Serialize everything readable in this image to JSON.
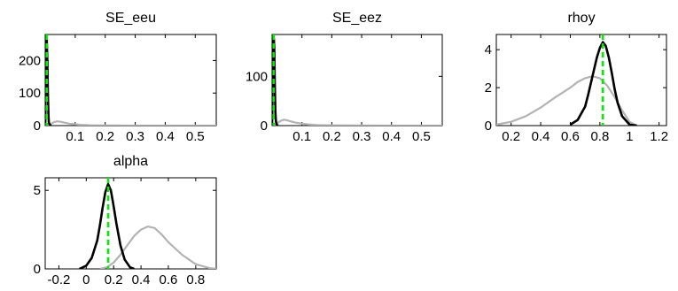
{
  "colors": {
    "prior": "#b3b3b3",
    "posterior": "#000000",
    "mode": "#00ee00",
    "axes": "#000000",
    "background": "#ffffff"
  },
  "chart_data": [
    {
      "type": "line",
      "title": "SE_eeu",
      "xlabel": "",
      "ylabel": "",
      "xlim": [
        0,
        0.57
      ],
      "ylim": [
        0,
        280
      ],
      "x_ticks": [
        0.1,
        0.2,
        0.3,
        0.4,
        0.5
      ],
      "x_tick_labels": [
        "0.1",
        "0.2",
        "0.3",
        "0.4",
        "0.5"
      ],
      "y_ticks": [
        0,
        100,
        200
      ],
      "y_tick_labels": [
        "0",
        "100",
        "200"
      ],
      "mode_line": 0.005,
      "series": [
        {
          "role": "prior",
          "x": [
            0,
            0.005,
            0.01,
            0.015,
            0.02,
            0.03,
            0.04,
            0.05,
            0.06,
            0.08,
            0.1,
            0.12,
            0.15,
            0.2,
            0.3,
            0.4,
            0.5,
            0.57
          ],
          "values": [
            0,
            0,
            1,
            3,
            6,
            11,
            13,
            12,
            10,
            6,
            4,
            2.5,
            1.2,
            0.5,
            0.1,
            0,
            0,
            0
          ]
        },
        {
          "role": "posterior",
          "x": [
            0,
            0.0005,
            0.001,
            0.002,
            0.003,
            0.004,
            0.005,
            0.006,
            0.007,
            0.008,
            0.009,
            0.01,
            0.011,
            0.012,
            0.015,
            0.02
          ],
          "values": [
            0,
            20,
            90,
            220,
            275,
            280,
            270,
            240,
            200,
            150,
            100,
            60,
            30,
            10,
            2,
            0
          ]
        }
      ]
    },
    {
      "type": "line",
      "title": "SE_eez",
      "xlabel": "",
      "ylabel": "",
      "xlim": [
        0,
        0.57
      ],
      "ylim": [
        0,
        185
      ],
      "x_ticks": [
        0.1,
        0.2,
        0.3,
        0.4,
        0.5
      ],
      "x_tick_labels": [
        "0.1",
        "0.2",
        "0.3",
        "0.4",
        "0.5"
      ],
      "y_ticks": [
        0,
        100
      ],
      "y_tick_labels": [
        "0",
        "100"
      ],
      "mode_line": 0.005,
      "series": [
        {
          "role": "prior",
          "x": [
            0,
            0.005,
            0.01,
            0.015,
            0.02,
            0.03,
            0.04,
            0.05,
            0.06,
            0.08,
            0.1,
            0.12,
            0.15,
            0.2,
            0.3,
            0.4,
            0.5,
            0.57
          ],
          "values": [
            0,
            0,
            1,
            3,
            6,
            10,
            12,
            11,
            9,
            6,
            4,
            2.5,
            1.2,
            0.5,
            0.1,
            0,
            0,
            0
          ]
        },
        {
          "role": "posterior",
          "x": [
            0,
            0.001,
            0.002,
            0.003,
            0.004,
            0.005,
            0.006,
            0.007,
            0.008,
            0.009,
            0.01,
            0.011,
            0.012,
            0.013,
            0.015,
            0.02
          ],
          "values": [
            0,
            40,
            120,
            175,
            182,
            180,
            175,
            160,
            130,
            90,
            55,
            30,
            18,
            8,
            2,
            0
          ]
        }
      ]
    },
    {
      "type": "line",
      "title": "rhoy",
      "xlabel": "",
      "ylabel": "",
      "xlim": [
        0.1,
        1.25
      ],
      "ylim": [
        0,
        4.8
      ],
      "x_ticks": [
        0.2,
        0.4,
        0.6,
        0.8,
        1,
        1.2
      ],
      "x_tick_labels": [
        "0.2",
        "0.4",
        "0.6",
        "0.8",
        "1",
        "1.2"
      ],
      "y_ticks": [
        0,
        2,
        4
      ],
      "y_tick_labels": [
        "0",
        "2",
        "4"
      ],
      "mode_line": 0.82,
      "series": [
        {
          "role": "prior",
          "x": [
            0.1,
            0.2,
            0.3,
            0.4,
            0.5,
            0.6,
            0.65,
            0.7,
            0.75,
            0.8,
            0.85,
            0.9,
            0.95,
            1.0,
            1.05
          ],
          "values": [
            0.05,
            0.2,
            0.5,
            0.95,
            1.5,
            2.0,
            2.3,
            2.5,
            2.6,
            2.5,
            2.1,
            1.5,
            0.8,
            0.2,
            0
          ]
        },
        {
          "role": "posterior",
          "x": [
            0.6,
            0.65,
            0.7,
            0.72,
            0.75,
            0.78,
            0.8,
            0.82,
            0.84,
            0.86,
            0.88,
            0.9,
            0.92,
            0.95,
            1.0,
            1.05
          ],
          "values": [
            0.05,
            0.3,
            1.0,
            1.6,
            2.6,
            3.6,
            4.1,
            4.4,
            4.2,
            3.6,
            2.8,
            1.9,
            1.2,
            0.5,
            0.05,
            0
          ]
        }
      ]
    },
    {
      "type": "line",
      "title": "alpha",
      "xlabel": "",
      "ylabel": "",
      "xlim": [
        -0.3,
        0.95
      ],
      "ylim": [
        0,
        5.8
      ],
      "x_ticks": [
        -0.2,
        0,
        0.2,
        0.4,
        0.6,
        0.8
      ],
      "x_tick_labels": [
        "-0.2",
        "0",
        "0.2",
        "0.4",
        "0.6",
        "0.8"
      ],
      "y_ticks": [
        0,
        5
      ],
      "y_tick_labels": [
        "0",
        "5"
      ],
      "mode_line": 0.16,
      "series": [
        {
          "role": "prior",
          "x": [
            0.1,
            0.15,
            0.2,
            0.25,
            0.3,
            0.35,
            0.4,
            0.45,
            0.5,
            0.55,
            0.6,
            0.7,
            0.8,
            0.9,
            0.95
          ],
          "values": [
            0,
            0.1,
            0.4,
            0.9,
            1.5,
            2.1,
            2.5,
            2.7,
            2.6,
            2.2,
            1.7,
            0.9,
            0.3,
            0.05,
            0
          ]
        },
        {
          "role": "posterior",
          "x": [
            -0.05,
            0,
            0.04,
            0.08,
            0.1,
            0.12,
            0.14,
            0.16,
            0.18,
            0.2,
            0.22,
            0.25,
            0.28,
            0.32,
            0.35
          ],
          "values": [
            0,
            0.2,
            0.7,
            1.8,
            2.8,
            3.9,
            4.9,
            5.4,
            5.0,
            4.0,
            2.9,
            1.5,
            0.6,
            0.1,
            0
          ]
        }
      ]
    }
  ]
}
